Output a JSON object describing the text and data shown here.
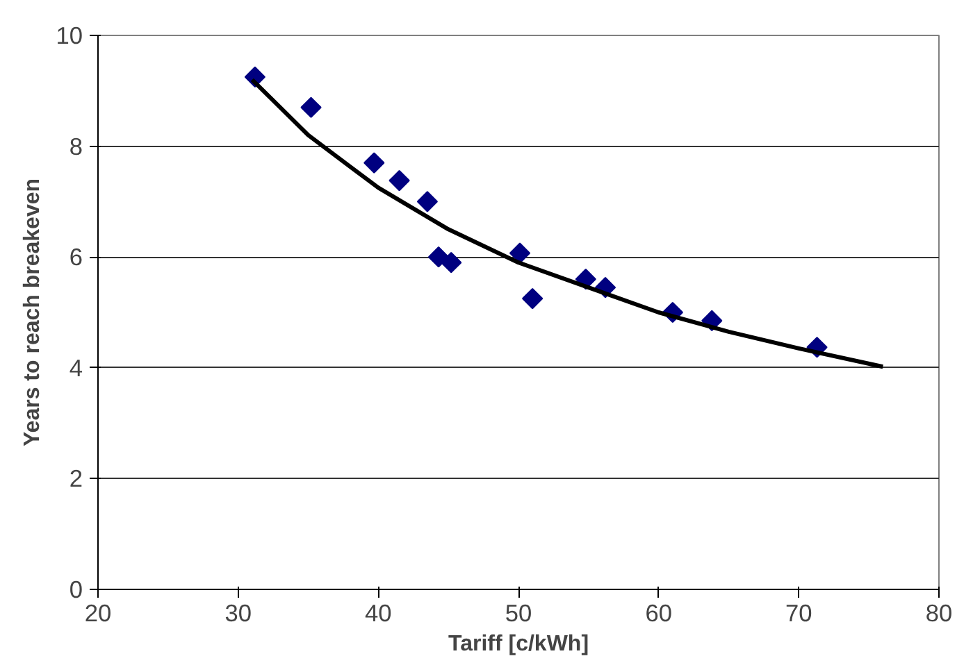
{
  "chart_data": {
    "type": "scatter",
    "xlabel": "Tariff [c/kWh]",
    "ylabel": "Years to reach breakeven",
    "xlim": [
      20,
      80
    ],
    "ylim": [
      0,
      10
    ],
    "xticks": [
      20,
      30,
      40,
      50,
      60,
      70,
      80
    ],
    "yticks": [
      0,
      2,
      4,
      6,
      8,
      10
    ],
    "grid": "y",
    "marker": "diamond",
    "series": [
      {
        "color": "#000080",
        "x": [
          31.2,
          35.2,
          39.7,
          41.5,
          43.5,
          44.3,
          45.2,
          50.1,
          51.0,
          54.8,
          56.2,
          61.0,
          63.8,
          71.3
        ],
        "values": [
          9.25,
          8.7,
          7.7,
          7.38,
          7.0,
          6.0,
          5.9,
          6.07,
          5.25,
          5.6,
          5.45,
          5.0,
          4.85,
          4.37
        ]
      },
      {
        "type": "line",
        "marker": "none",
        "color": "#000000",
        "x": [
          31,
          35,
          40,
          45,
          50,
          55,
          60,
          65,
          70,
          76
        ],
        "values": [
          9.2,
          8.2,
          7.25,
          6.5,
          5.9,
          5.45,
          5.0,
          4.65,
          4.35,
          4.02
        ]
      }
    ]
  }
}
